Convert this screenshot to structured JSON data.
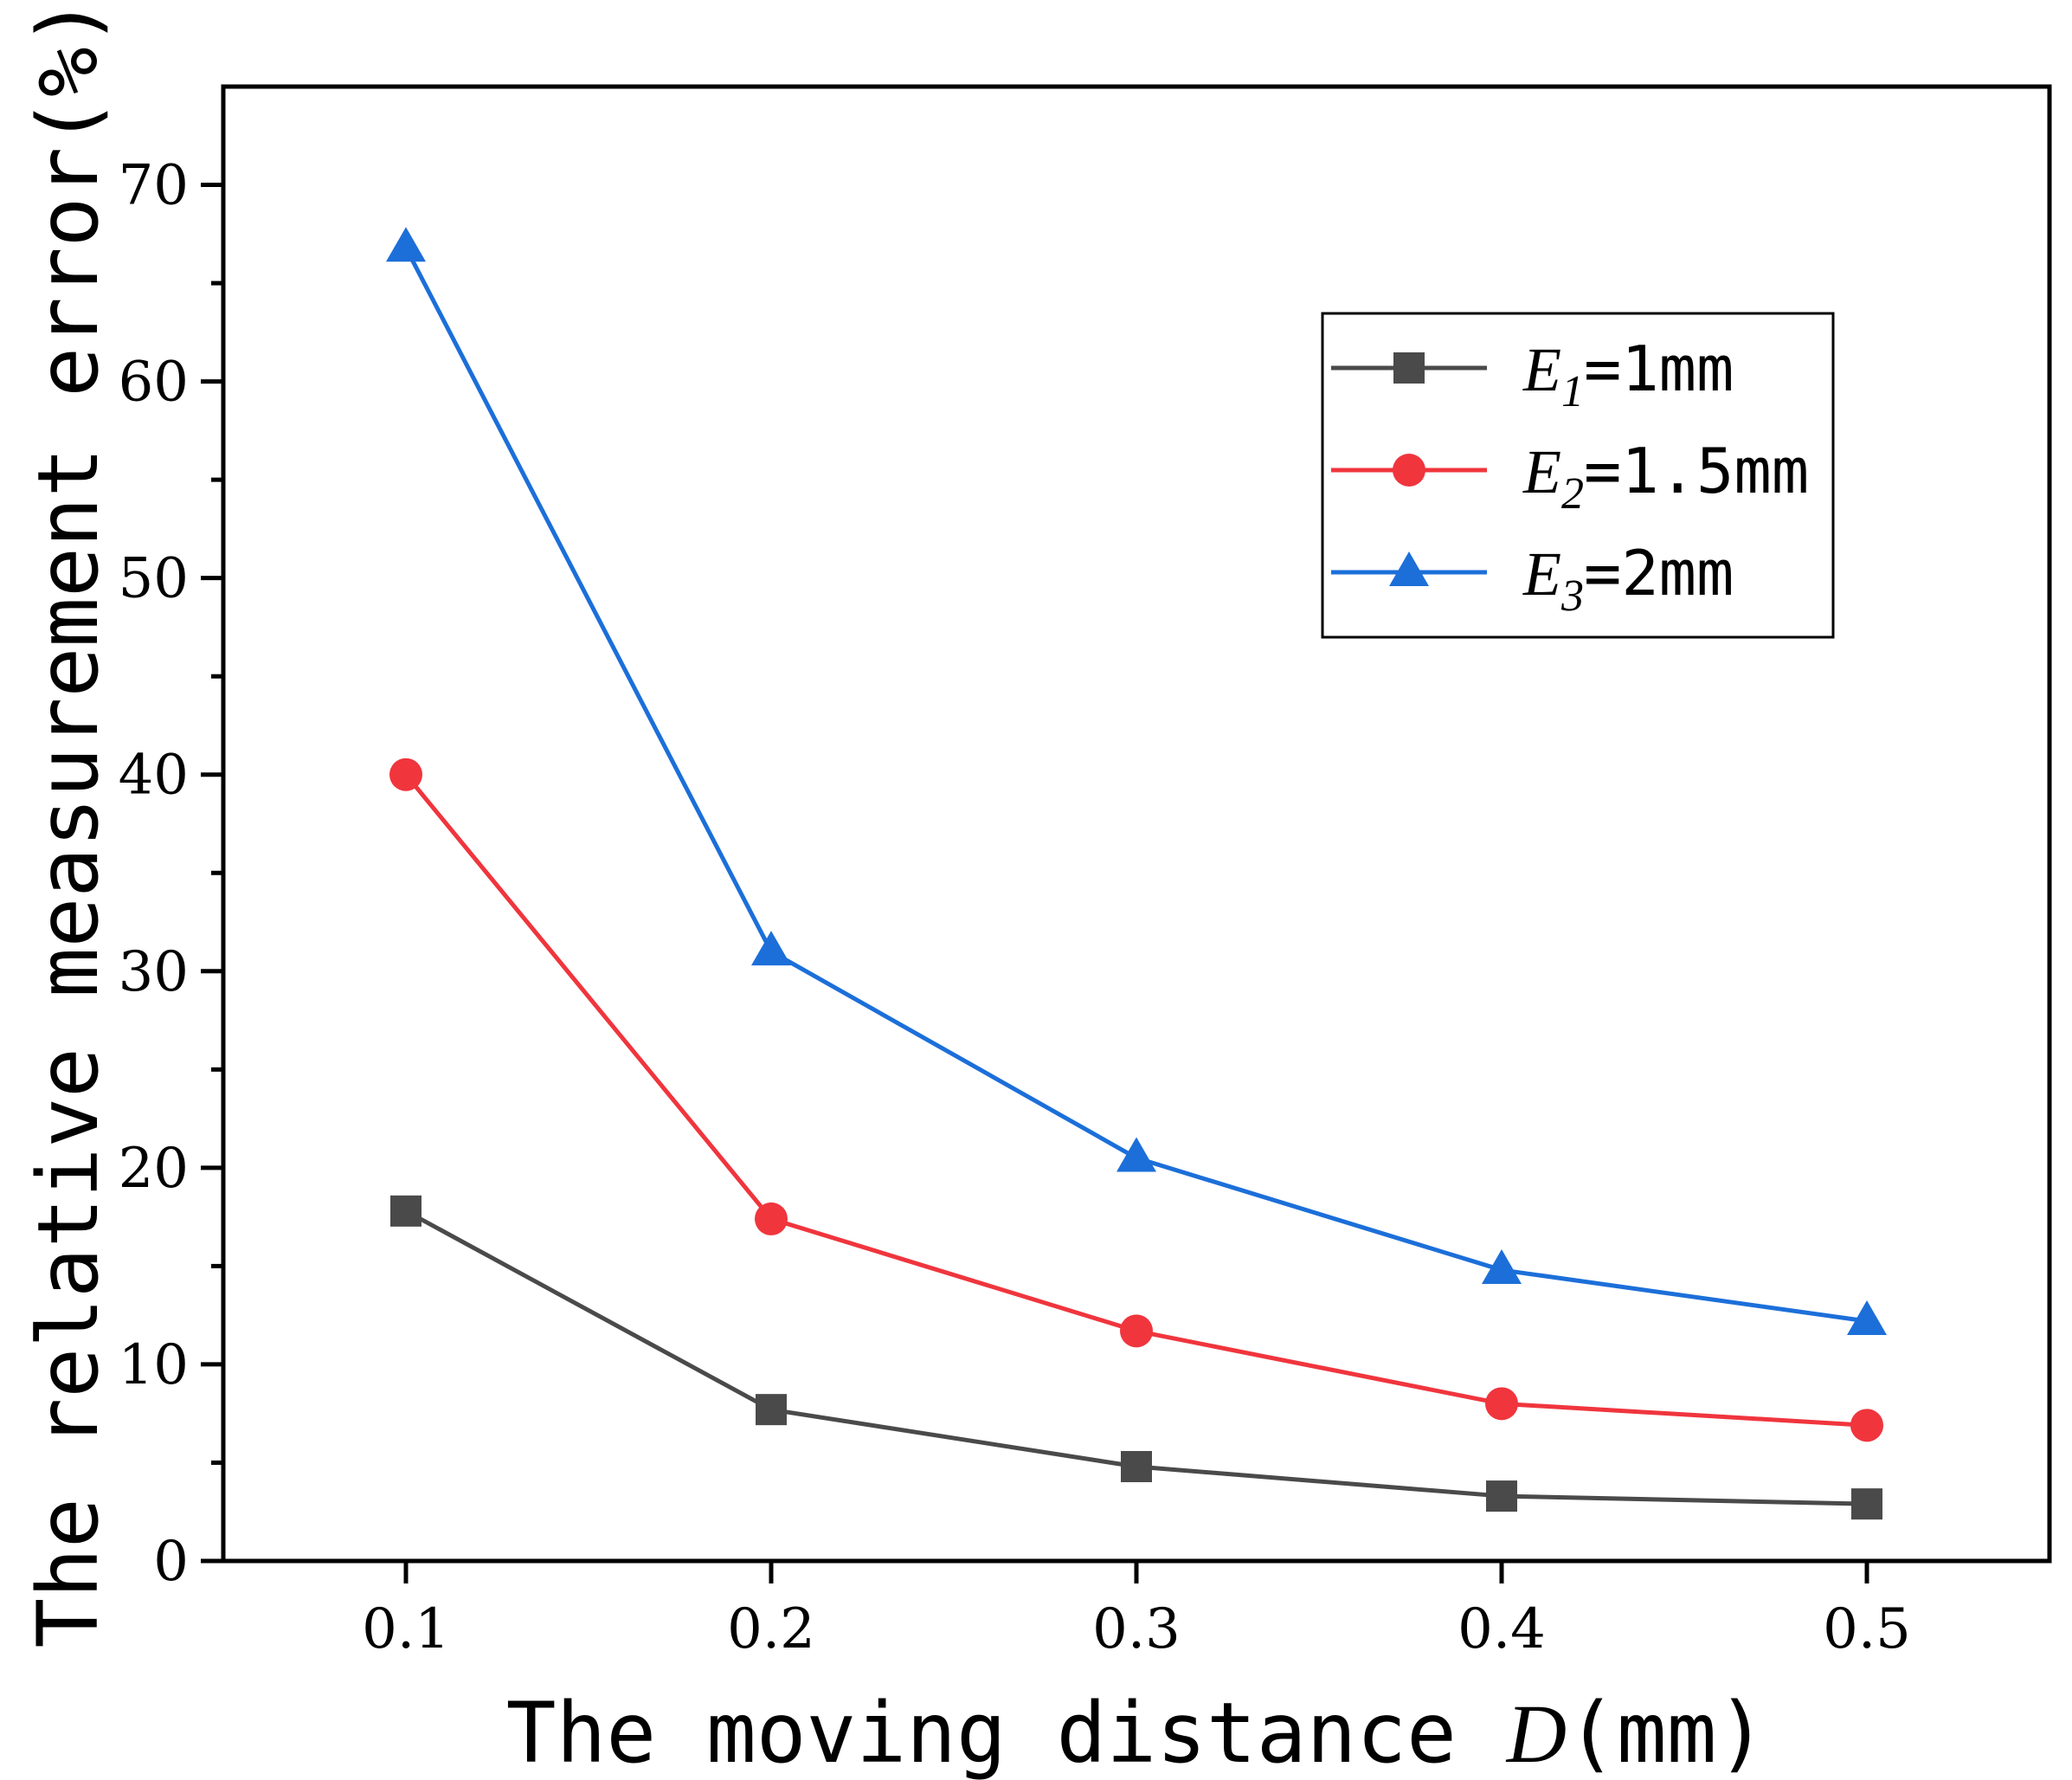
{
  "chart_data": {
    "type": "line",
    "xlabel": "The moving distance D(mm)",
    "xlabel_prefix": "The moving distance ",
    "xlabel_var": "D",
    "xlabel_suffix": "(mm)",
    "ylabel": "The relative measurement error(%)",
    "x": [
      0.1,
      0.2,
      0.3,
      0.4,
      0.5
    ],
    "x_tick_labels": [
      "0.1",
      "0.2",
      "0.3",
      "0.4",
      "0.5"
    ],
    "y_ticks": [
      0,
      10,
      20,
      30,
      40,
      50,
      60,
      70
    ],
    "y_tick_labels": [
      "0",
      "10",
      "20",
      "30",
      "40",
      "50",
      "60",
      "70"
    ],
    "xlim": [
      0.05,
      0.55
    ],
    "ylim": [
      0,
      75
    ],
    "grid": false,
    "legend_position": "top-right",
    "series": [
      {
        "name": "E1=1mm",
        "var": "E",
        "sub": "1",
        "rest": "=1mm",
        "color": "#4a4a4a",
        "marker": "square",
        "values": [
          17.8,
          7.7,
          4.8,
          3.3,
          2.9
        ]
      },
      {
        "name": "E2=1.5mm",
        "var": "E",
        "sub": "2",
        "rest": "=1.5mm",
        "color": "#f0353d",
        "marker": "circle",
        "values": [
          40.0,
          17.4,
          11.7,
          8.0,
          6.9
        ]
      },
      {
        "name": "E3=2mm",
        "var": "E",
        "sub": "3",
        "rest": "=2mm",
        "color": "#1c6fd9",
        "marker": "triangle",
        "values": [
          66.8,
          31.0,
          20.5,
          14.8,
          12.2
        ]
      }
    ]
  }
}
